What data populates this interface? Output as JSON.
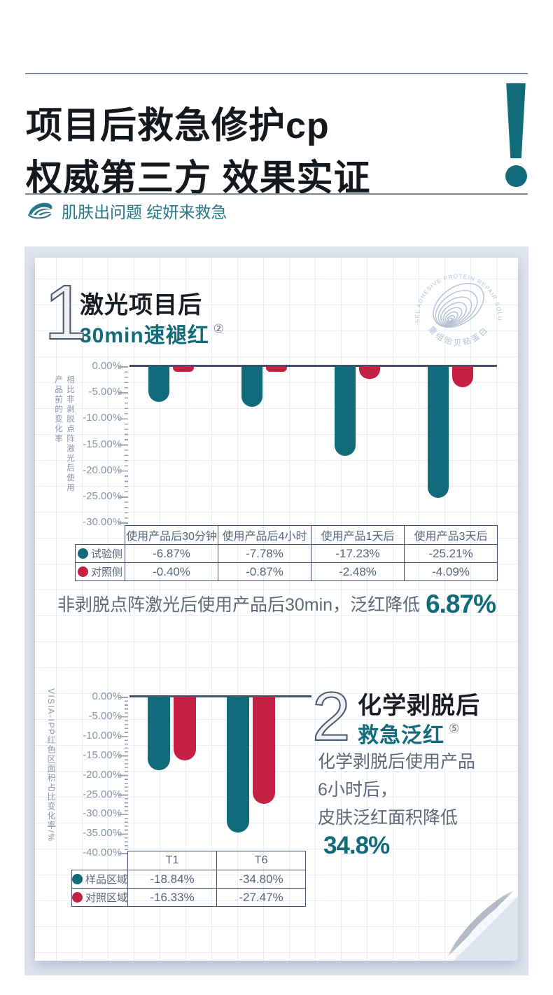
{
  "colors": {
    "teal": "#116B7B",
    "red": "#C62045",
    "ink": "#15181D",
    "gray_text": "#5E6877",
    "axis": "#45516B",
    "tick": "#99A2B4",
    "label_gray": "#8B95A8",
    "panel_bg": "#DFE5EE",
    "grid_line": "#E6EEF8",
    "badge": "#B4C0D3"
  },
  "header": {
    "title_line1": "项目后救急修护cp",
    "title_line2": "权威第三方 效果实证",
    "exclamation": "!",
    "tagline": "肌肤出问题 绽妍来救急"
  },
  "badge": {
    "ring_text": "MUSSEL ADHESIVE PROTEIN REPAIR SOLUTION",
    "bottom_text": "重组贻贝粘蛋白"
  },
  "section1": {
    "number": "1",
    "title": "激光项目后",
    "subtitle": "30min速褪红",
    "footnote_mark": "②",
    "summary_text": "非剥脱点阵激光后使用产品后30min，泛红降低",
    "summary_value": "6.87%"
  },
  "section2": {
    "number": "2",
    "title": "化学剥脱后",
    "subtitle": "救急泛红",
    "footnote_mark": "⑤",
    "para_line1": "化学剥脱后使用产品",
    "para_line2": "6小时后，",
    "para_line3": "皮肤泛红面积降低",
    "para_value": "34.8%"
  },
  "chart_data": [
    {
      "type": "bar",
      "title": "激光项目后30min速褪红",
      "categories": [
        "使用产品后30分钟",
        "使用产品后4小时",
        "使用产品1天后",
        "使用产品3天后"
      ],
      "series": [
        {
          "name": "试验侧",
          "color": "#116B7B",
          "values": [
            -6.87,
            -7.78,
            -17.23,
            -25.21
          ]
        },
        {
          "name": "对照侧",
          "color": "#C62045",
          "values": [
            -0.4,
            -0.87,
            -2.48,
            -4.09
          ]
        }
      ],
      "ylabel": "相比非剥脱点阵激光后使用产品前的变化率",
      "ylabel_lines": [
        "相比非剥脱点阵激光后使用",
        "产品前的变化率"
      ],
      "ylim": [
        -30,
        0
      ],
      "yticks": [
        "0.00%",
        "-5.00%",
        "-10.00%",
        "-15.00%",
        "-20.00%",
        "-25.00%",
        "-30.00%"
      ],
      "legend_position": "table-left",
      "table": {
        "headers": [
          "使用产品后30分钟",
          "使用产品后4小时",
          "使用产品1天后",
          "使用产品3天后"
        ],
        "rows": [
          {
            "label": "试验侧",
            "color": "#116B7B",
            "values": [
              "-6.87%",
              "-7.78%",
              "-17.23%",
              "-25.21%"
            ]
          },
          {
            "label": "对照侧",
            "color": "#C62045",
            "values": [
              "-0.40%",
              "-0.87%",
              "-2.48%",
              "-4.09%"
            ]
          }
        ]
      }
    },
    {
      "type": "bar",
      "title": "化学剥脱后救急泛红",
      "categories": [
        "T1",
        "T6"
      ],
      "series": [
        {
          "name": "样品区域",
          "color": "#116B7B",
          "values": [
            -18.84,
            -34.8
          ]
        },
        {
          "name": "对照区域",
          "color": "#C62045",
          "values": [
            -16.33,
            -27.47
          ]
        }
      ],
      "ylabel": "VISIA-IPP红色区面积占比变化率/%",
      "ylim": [
        -40,
        0
      ],
      "yticks": [
        "0.00%",
        "-5.00%",
        "-10.00%",
        "-15.00%",
        "-20.00%",
        "-25.00%",
        "-30.00%",
        "-35.00%",
        "-40.00%"
      ],
      "legend_position": "table-left",
      "table": {
        "headers": [
          "T1",
          "T6"
        ],
        "rows": [
          {
            "label": "样品区域",
            "color": "#116B7B",
            "values": [
              "-18.84%",
              "-34.80%"
            ]
          },
          {
            "label": "对照区域",
            "color": "#C62045",
            "values": [
              "-16.33%",
              "-27.47%"
            ]
          }
        ]
      }
    }
  ]
}
